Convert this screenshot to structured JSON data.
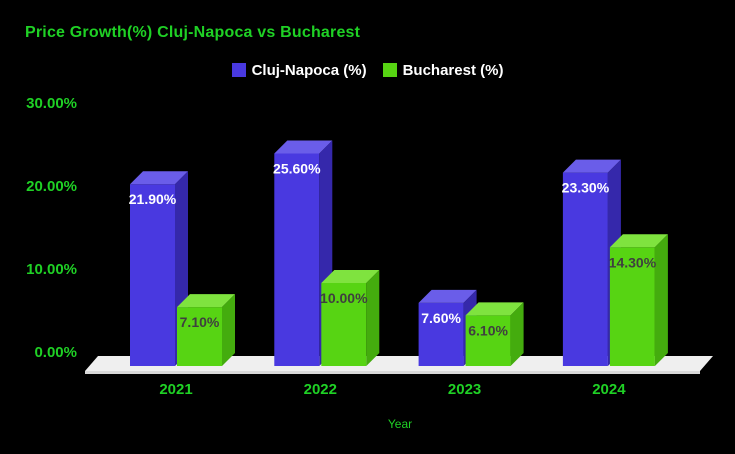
{
  "palette": {
    "background": "#000000",
    "accent_green": "#1FD125",
    "legend_text": "#FFFFFF",
    "floor_top": "#EFEFEF",
    "floor_edge": "#D9D9D9"
  },
  "chart_data": {
    "type": "bar",
    "style_3d": true,
    "title": "Price Growth(%) Cluj-Napoca vs Bucharest",
    "xlabel": "Year",
    "ylabel": "",
    "categories": [
      "2021",
      "2022",
      "2023",
      "2024"
    ],
    "series": [
      {
        "name": "Cluj-Napoca (%)",
        "values": [
          21.9,
          25.6,
          7.6,
          23.3
        ],
        "value_labels": [
          "21.90%",
          "25.60%",
          "7.60%",
          "23.30%"
        ],
        "color_front": "#4939E0",
        "color_top": "#6A5DE9",
        "color_side": "#3528AB",
        "label_color": "#FFFFFF"
      },
      {
        "name": "Bucharest (%)",
        "values": [
          7.1,
          10.0,
          6.1,
          14.3
        ],
        "value_labels": [
          "7.10%",
          "10.00%",
          "6.10%",
          "14.30%"
        ],
        "color_front": "#57D413",
        "color_top": "#7FE33F",
        "color_side": "#44AC0E",
        "label_color": "#3F3F3F"
      }
    ],
    "yticks": [
      {
        "value": 30,
        "label": "30.00%"
      },
      {
        "value": 20,
        "label": "20.00%"
      },
      {
        "value": 10,
        "label": "10.00%"
      },
      {
        "value": 0,
        "label": "0.00%"
      }
    ],
    "ylim": [
      0,
      30
    ],
    "legend_position": "top-center",
    "grid": false,
    "background": "#000000"
  }
}
